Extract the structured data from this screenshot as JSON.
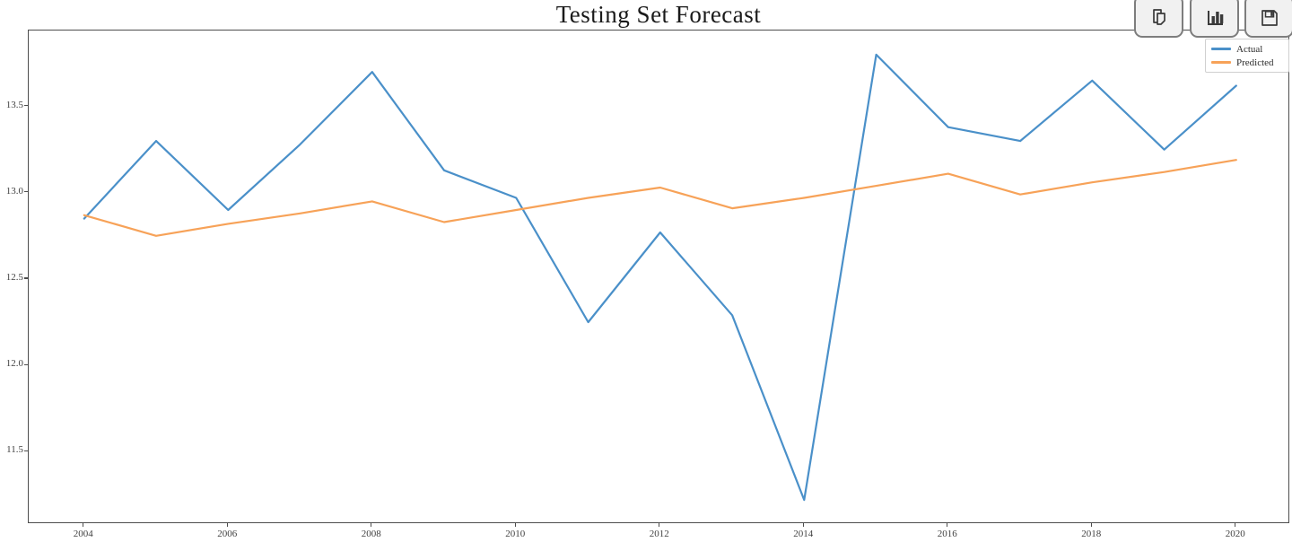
{
  "title": "Testing Set Forecast",
  "toolbar": {
    "buttons": [
      {
        "id": "copy",
        "icon": "copy-icon"
      },
      {
        "id": "chart",
        "icon": "bar-chart-icon"
      },
      {
        "id": "save",
        "icon": "save-icon"
      }
    ]
  },
  "legend": {
    "entries": [
      {
        "label": "Actual"
      },
      {
        "label": "Predicted"
      }
    ]
  },
  "chart_data": {
    "type": "line",
    "title": "Testing Set Forecast",
    "xlabel": "",
    "ylabel": "",
    "x": [
      2004,
      2005,
      2006,
      2007,
      2008,
      2009,
      2010,
      2011,
      2012,
      2013,
      2014,
      2015,
      2016,
      2017,
      2018,
      2019,
      2020
    ],
    "series": [
      {
        "name": "Actual",
        "color": "#4a90c9",
        "values": [
          12.85,
          13.3,
          12.9,
          13.28,
          13.7,
          13.13,
          12.97,
          12.25,
          12.77,
          12.29,
          11.22,
          13.8,
          13.38,
          13.3,
          13.65,
          13.25,
          13.62
        ]
      },
      {
        "name": "Predicted",
        "color": "#f7a258",
        "values": [
          12.87,
          12.75,
          12.82,
          12.88,
          12.95,
          12.83,
          12.9,
          12.97,
          13.03,
          12.91,
          12.97,
          13.04,
          13.11,
          12.99,
          13.06,
          13.12,
          13.19
        ]
      }
    ],
    "xticks": [
      2004,
      2006,
      2008,
      2010,
      2012,
      2014,
      2016,
      2018,
      2020
    ],
    "yticks": [
      13.5,
      13.0,
      12.5,
      12.0,
      11.5
    ],
    "xlim": [
      2003.23,
      2020.75
    ],
    "ylim": [
      11.08,
      13.94
    ],
    "grid": false,
    "legend_position": "upper right"
  }
}
